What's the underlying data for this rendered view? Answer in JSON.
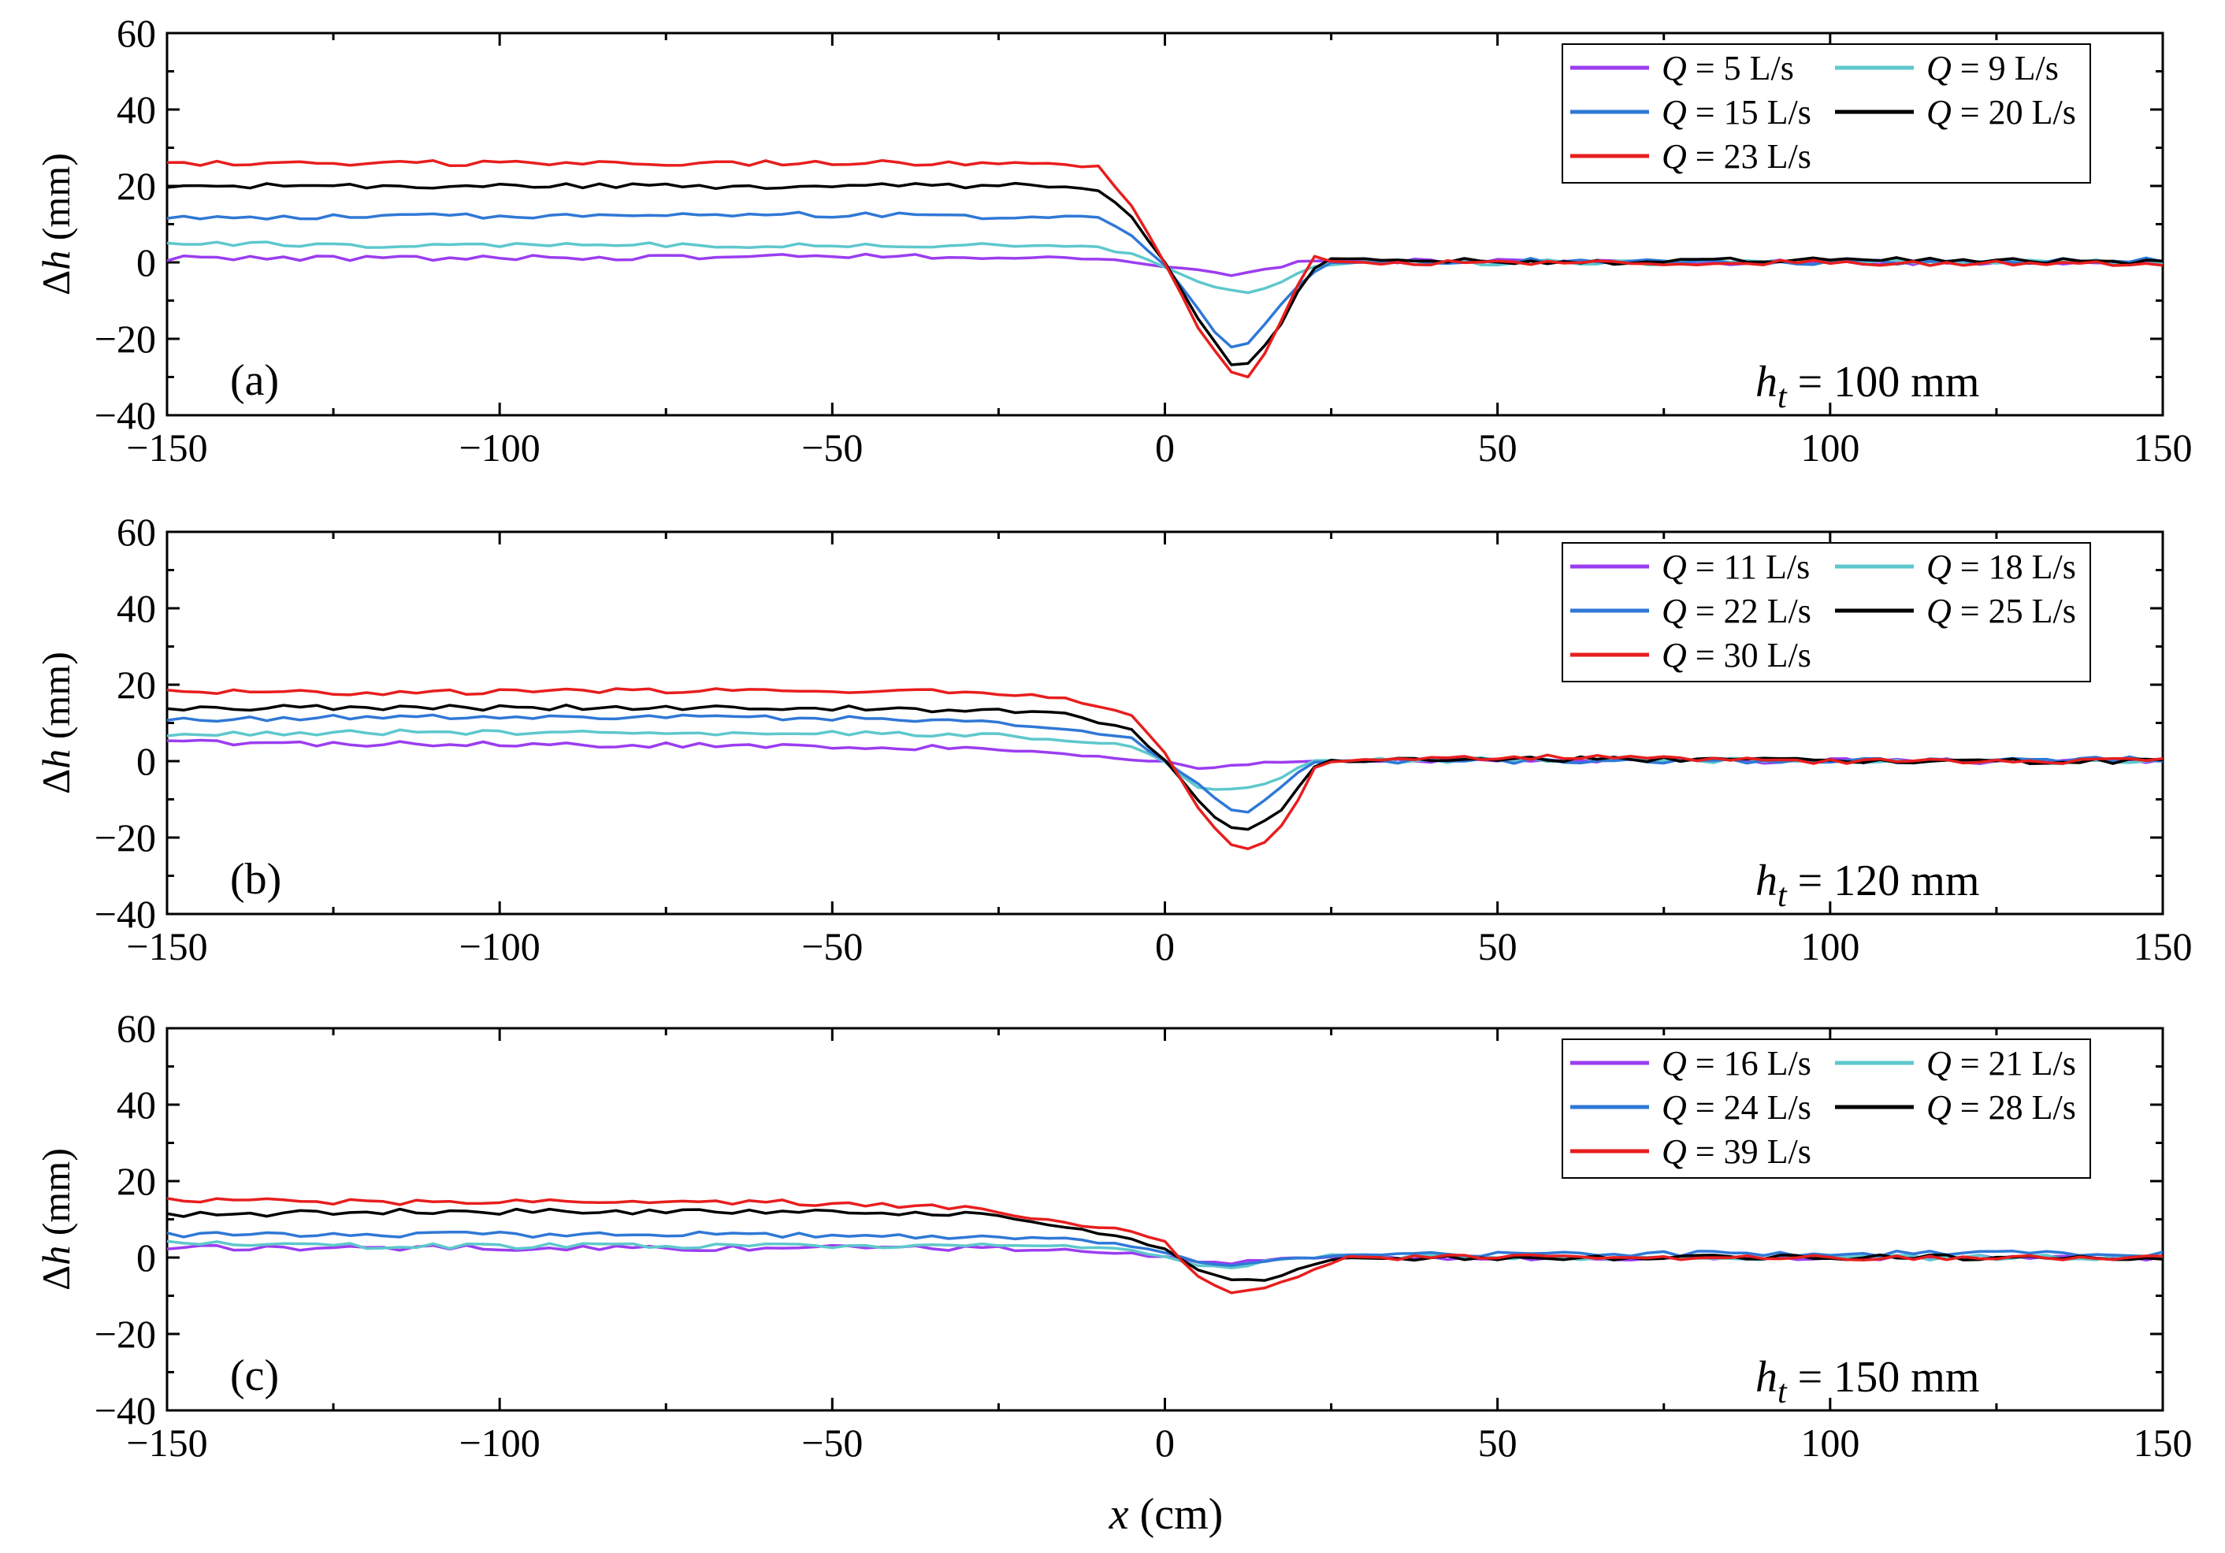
{
  "figure": {
    "x_axis_title": "x (cm)",
    "y_axis_title": "Δh (mm)",
    "colors": {
      "purple": "#9b3df0",
      "cyan": "#5ec8cc",
      "blue": "#2f78d6",
      "black": "#000000",
      "red": "#e81e1e"
    }
  },
  "chart_data": [
    {
      "type": "line",
      "panel_label": "(a)",
      "ht_label": "ht = 100 mm",
      "ht_symbol": "h",
      "ht_subscript": "t",
      "ht_value": "= 100 mm",
      "xlim": [
        -150,
        150
      ],
      "ylim": [
        -40,
        60
      ],
      "xticks": [
        -150,
        -100,
        -50,
        0,
        50,
        100,
        150
      ],
      "yticks": [
        -40,
        -20,
        0,
        20,
        40,
        60
      ],
      "xtick_labels": [
        "−150",
        "−100",
        "−50",
        "0",
        "50",
        "100",
        "150"
      ],
      "ytick_labels": [
        "−40",
        "−20",
        "0",
        "20",
        "40",
        "60"
      ],
      "xlabel": "",
      "ylabel": "Δh (mm)",
      "series": [
        {
          "name": "Q = 5 L/s",
          "q_value": "= 5 L/s",
          "color": "#9b3df0",
          "points": [
            [
              -150,
              1
            ],
            [
              -120,
              1
            ],
            [
              -60,
              1.5
            ],
            [
              -20,
              1.5
            ],
            [
              -10,
              1
            ],
            [
              -5,
              0
            ],
            [
              0,
              -1
            ],
            [
              5,
              -2
            ],
            [
              10,
              -3.5
            ],
            [
              15,
              -2
            ],
            [
              20,
              0
            ],
            [
              25,
              0.5
            ],
            [
              60,
              0
            ],
            [
              100,
              0
            ],
            [
              150,
              0
            ]
          ]
        },
        {
          "name": "Q = 9 L/s",
          "q_value": "= 9 L/s",
          "color": "#5ec8cc",
          "points": [
            [
              -150,
              5
            ],
            [
              -120,
              4.5
            ],
            [
              -60,
              4.5
            ],
            [
              -20,
              4.5
            ],
            [
              -10,
              4
            ],
            [
              -5,
              2
            ],
            [
              0,
              -1
            ],
            [
              5,
              -5
            ],
            [
              12,
              -8.5
            ],
            [
              18,
              -5
            ],
            [
              22,
              -1
            ],
            [
              28,
              0
            ],
            [
              60,
              0
            ],
            [
              100,
              0
            ],
            [
              150,
              0
            ]
          ]
        },
        {
          "name": "Q = 15 L/s",
          "q_value": "= 15 L/s",
          "color": "#2f78d6",
          "points": [
            [
              -150,
              12
            ],
            [
              -120,
              12
            ],
            [
              -60,
              12.5
            ],
            [
              -20,
              12
            ],
            [
              -10,
              12
            ],
            [
              -5,
              7
            ],
            [
              0,
              -1
            ],
            [
              5,
              -12
            ],
            [
              9,
              -22
            ],
            [
              12,
              -22
            ],
            [
              16,
              -14
            ],
            [
              21,
              -4
            ],
            [
              25,
              0
            ],
            [
              60,
              0.5
            ],
            [
              100,
              0
            ],
            [
              150,
              0.5
            ]
          ]
        },
        {
          "name": "Q = 20 L/s",
          "q_value": "= 20 L/s",
          "color": "#000000",
          "points": [
            [
              -150,
              20
            ],
            [
              -120,
              20
            ],
            [
              -60,
              20
            ],
            [
              -20,
              20
            ],
            [
              -10,
              19
            ],
            [
              -5,
              12
            ],
            [
              0,
              0
            ],
            [
              5,
              -15
            ],
            [
              10,
              -27
            ],
            [
              13,
              -26
            ],
            [
              17,
              -18
            ],
            [
              21,
              -4
            ],
            [
              24,
              1
            ],
            [
              60,
              0
            ],
            [
              100,
              1
            ],
            [
              150,
              0
            ]
          ]
        },
        {
          "name": "Q = 23 L/s",
          "q_value": "= 23 L/s",
          "color": "#e81e1e",
          "points": [
            [
              -150,
              26
            ],
            [
              -120,
              26
            ],
            [
              -60,
              26
            ],
            [
              -20,
              26
            ],
            [
              -10,
              25
            ],
            [
              -5,
              15
            ],
            [
              0,
              0
            ],
            [
              5,
              -17
            ],
            [
              10,
              -29
            ],
            [
              12,
              -31
            ],
            [
              15,
              -24
            ],
            [
              19,
              -10
            ],
            [
              22,
              2
            ],
            [
              26,
              0
            ],
            [
              60,
              0
            ],
            [
              100,
              0
            ],
            [
              150,
              -0.5
            ]
          ]
        }
      ]
    },
    {
      "type": "line",
      "panel_label": "(b)",
      "ht_label": "ht = 120 mm",
      "ht_symbol": "h",
      "ht_subscript": "t",
      "ht_value": "= 120 mm",
      "xlim": [
        -150,
        150
      ],
      "ylim": [
        -40,
        60
      ],
      "xticks": [
        -150,
        -100,
        -50,
        0,
        50,
        100,
        150
      ],
      "yticks": [
        -40,
        -20,
        0,
        20,
        40,
        60
      ],
      "xtick_labels": [
        "−150",
        "−100",
        "−50",
        "0",
        "50",
        "100",
        "150"
      ],
      "ytick_labels": [
        "−40",
        "−20",
        "0",
        "20",
        "40",
        "60"
      ],
      "xlabel": "",
      "ylabel": "Δh (mm)",
      "series": [
        {
          "name": "Q = 11 L/s",
          "q_value": "= 11 L/s",
          "color": "#9b3df0",
          "points": [
            [
              -150,
              5
            ],
            [
              -120,
              4.5
            ],
            [
              -60,
              4
            ],
            [
              -30,
              3.5
            ],
            [
              -15,
              2
            ],
            [
              -5,
              0.5
            ],
            [
              0,
              0
            ],
            [
              5,
              -2
            ],
            [
              10,
              -1
            ],
            [
              15,
              -0.5
            ],
            [
              22,
              0
            ],
            [
              60,
              0.5
            ],
            [
              100,
              0
            ],
            [
              150,
              0
            ]
          ]
        },
        {
          "name": "Q = 18 L/s",
          "q_value": "= 18 L/s",
          "color": "#5ec8cc",
          "points": [
            [
              -150,
              7
            ],
            [
              -120,
              7.5
            ],
            [
              -60,
              7.5
            ],
            [
              -30,
              7
            ],
            [
              -15,
              5.5
            ],
            [
              -5,
              4
            ],
            [
              0,
              0
            ],
            [
              5,
              -7
            ],
            [
              10,
              -7.5
            ],
            [
              15,
              -6
            ],
            [
              19,
              -3
            ],
            [
              22,
              0
            ],
            [
              60,
              0.5
            ],
            [
              100,
              0
            ],
            [
              150,
              0
            ]
          ]
        },
        {
          "name": "Q = 22 L/s",
          "q_value": "= 22 L/s",
          "color": "#2f78d6",
          "points": [
            [
              -150,
              11
            ],
            [
              -120,
              11.5
            ],
            [
              -60,
              11.5
            ],
            [
              -30,
              10.5
            ],
            [
              -15,
              8.5
            ],
            [
              -5,
              6
            ],
            [
              0,
              0
            ],
            [
              5,
              -6
            ],
            [
              9,
              -12
            ],
            [
              12,
              -14
            ],
            [
              16,
              -9
            ],
            [
              20,
              -3
            ],
            [
              23,
              0
            ],
            [
              60,
              0
            ],
            [
              100,
              0
            ],
            [
              150,
              0.5
            ]
          ]
        },
        {
          "name": "Q = 25 L/s",
          "q_value": "= 25 L/s",
          "color": "#000000",
          "points": [
            [
              -150,
              14
            ],
            [
              -120,
              14
            ],
            [
              -60,
              14
            ],
            [
              -30,
              13.5
            ],
            [
              -15,
              12.5
            ],
            [
              -5,
              8
            ],
            [
              0,
              0
            ],
            [
              5,
              -10
            ],
            [
              9,
              -17
            ],
            [
              12,
              -18
            ],
            [
              17,
              -14
            ],
            [
              21,
              -5
            ],
            [
              23,
              0
            ],
            [
              60,
              0.5
            ],
            [
              100,
              0
            ],
            [
              150,
              0
            ]
          ]
        },
        {
          "name": "Q = 30 L/s",
          "q_value": "= 30 L/s",
          "color": "#e81e1e",
          "points": [
            [
              -150,
              18
            ],
            [
              -120,
              18
            ],
            [
              -60,
              18.5
            ],
            [
              -30,
              18.5
            ],
            [
              -15,
              16.5
            ],
            [
              -5,
              12
            ],
            [
              0,
              2
            ],
            [
              5,
              -12
            ],
            [
              9,
              -21
            ],
            [
              12,
              -23
            ],
            [
              16,
              -21
            ],
            [
              20,
              -10
            ],
            [
              23,
              0
            ],
            [
              60,
              1
            ],
            [
              100,
              0
            ],
            [
              150,
              0
            ]
          ]
        }
      ]
    },
    {
      "type": "line",
      "panel_label": "(c)",
      "ht_label": "ht = 150 mm",
      "ht_symbol": "h",
      "ht_subscript": "t",
      "ht_value": "= 150 mm",
      "xlim": [
        -150,
        150
      ],
      "ylim": [
        -40,
        60
      ],
      "xticks": [
        -150,
        -100,
        -50,
        0,
        50,
        100,
        150
      ],
      "yticks": [
        -40,
        -20,
        0,
        20,
        40,
        60
      ],
      "xtick_labels": [
        "−150",
        "−100",
        "−50",
        "0",
        "50",
        "100",
        "150"
      ],
      "ytick_labels": [
        "−40",
        "−20",
        "0",
        "20",
        "40",
        "60"
      ],
      "xlabel": "x (cm)",
      "ylabel": "Δh (mm)",
      "series": [
        {
          "name": "Q = 16 L/s",
          "q_value": "= 16 L/s",
          "color": "#9b3df0",
          "points": [
            [
              -150,
              2.5
            ],
            [
              -120,
              2.5
            ],
            [
              -60,
              2.5
            ],
            [
              -30,
              2.5
            ],
            [
              -15,
              2
            ],
            [
              -5,
              1
            ],
            [
              0,
              0
            ],
            [
              5,
              -1
            ],
            [
              10,
              -1.5
            ],
            [
              15,
              -0.5
            ],
            [
              25,
              0
            ],
            [
              60,
              0
            ],
            [
              100,
              0
            ],
            [
              150,
              0
            ]
          ]
        },
        {
          "name": "Q = 21 L/s",
          "q_value": "= 21 L/s",
          "color": "#5ec8cc",
          "points": [
            [
              -150,
              4
            ],
            [
              -120,
              3
            ],
            [
              -60,
              3
            ],
            [
              -30,
              3
            ],
            [
              -15,
              3
            ],
            [
              -5,
              2
            ],
            [
              0,
              0
            ],
            [
              5,
              -2
            ],
            [
              10,
              -3
            ],
            [
              15,
              -1
            ],
            [
              25,
              0.5
            ],
            [
              60,
              0
            ],
            [
              100,
              0
            ],
            [
              150,
              0
            ]
          ]
        },
        {
          "name": "Q = 24 L/s",
          "q_value": "= 24 L/s",
          "color": "#2f78d6",
          "points": [
            [
              -150,
              6
            ],
            [
              -120,
              6
            ],
            [
              -60,
              6
            ],
            [
              -30,
              5
            ],
            [
              -15,
              5
            ],
            [
              -5,
              3
            ],
            [
              0,
              1
            ],
            [
              5,
              -1
            ],
            [
              10,
              -2
            ],
            [
              15,
              -1
            ],
            [
              25,
              0.5
            ],
            [
              60,
              1
            ],
            [
              100,
              1
            ],
            [
              150,
              1
            ]
          ]
        },
        {
          "name": "Q = 28 L/s",
          "q_value": "= 28 L/s",
          "color": "#000000",
          "points": [
            [
              -150,
              11
            ],
            [
              -120,
              12
            ],
            [
              -60,
              12
            ],
            [
              -30,
              11.5
            ],
            [
              -15,
              8
            ],
            [
              -5,
              5
            ],
            [
              0,
              2
            ],
            [
              5,
              -3
            ],
            [
              10,
              -6
            ],
            [
              15,
              -6
            ],
            [
              20,
              -3
            ],
            [
              27,
              0
            ],
            [
              60,
              0
            ],
            [
              100,
              0
            ],
            [
              150,
              0
            ]
          ]
        },
        {
          "name": "Q = 39 L/s",
          "q_value": "= 39 L/s",
          "color": "#e81e1e",
          "points": [
            [
              -150,
              15
            ],
            [
              -120,
              14.5
            ],
            [
              -60,
              14.5
            ],
            [
              -30,
              13
            ],
            [
              -15,
              9
            ],
            [
              -5,
              7
            ],
            [
              0,
              4
            ],
            [
              5,
              -5
            ],
            [
              10,
              -9
            ],
            [
              15,
              -8
            ],
            [
              20,
              -5
            ],
            [
              27,
              0
            ],
            [
              60,
              0
            ],
            [
              100,
              0
            ],
            [
              150,
              0
            ]
          ]
        }
      ]
    }
  ]
}
